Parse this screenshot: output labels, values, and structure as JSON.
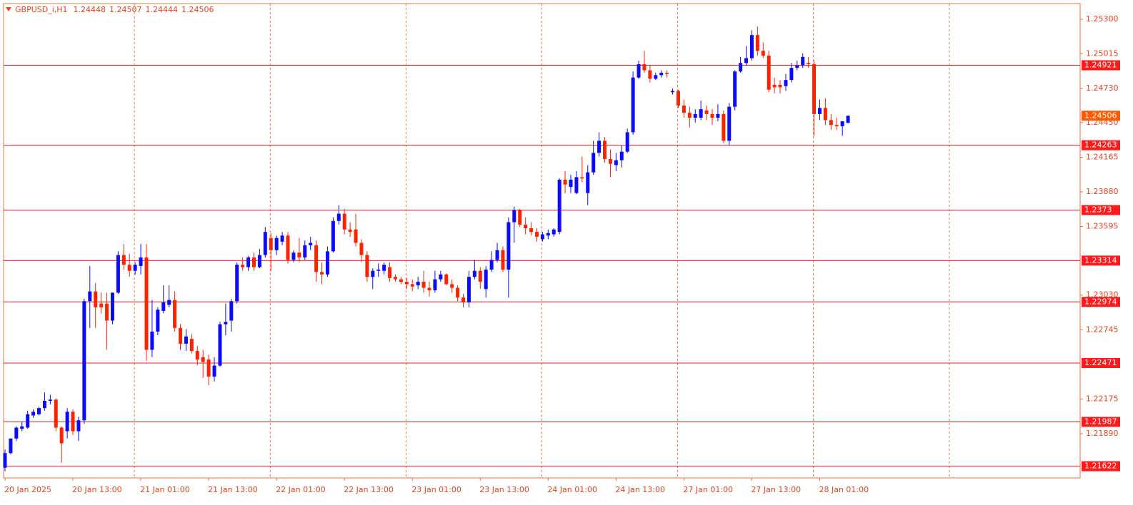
{
  "chart_data": {
    "type": "candlestick",
    "title": "GBPUSD_i,H1",
    "up_color": "#0a0aff",
    "down_color": "#ff2200",
    "level_color": "#ff1a1a",
    "current_color": "#ff5a00",
    "period_separators": true,
    "ylim": [
      1.21526,
      1.25429
    ],
    "yticks": [
      {
        "value": 1.253,
        "label": "1.25300"
      },
      1.25015,
      {
        "value": 1.2473,
        "label": "1.24730"
      },
      {
        "value": 1.2445,
        "label": "1.24450"
      },
      1.24165,
      {
        "value": 1.2388,
        "label": "1.23880"
      },
      1.23595,
      {
        "value": 1.2303,
        "label": "1.23030"
      },
      1.22745,
      1.22175,
      {
        "value": 1.2189,
        "label": "1.21890"
      }
    ],
    "levels": [
      1.24921,
      1.24263,
      1.2373,
      1.23314,
      1.22974,
      1.22471,
      1.21987,
      1.21622
    ],
    "categories": [
      "20 Jan 2025",
      null,
      null,
      null,
      null,
      null,
      null,
      null,
      null,
      null,
      null,
      null,
      "20 Jan 13:00",
      null,
      null,
      null,
      null,
      null,
      null,
      null,
      null,
      null,
      null,
      null,
      "21 Jan 01:00",
      null,
      null,
      null,
      null,
      null,
      null,
      null,
      null,
      null,
      null,
      null,
      "21 Jan 13:00",
      null,
      null,
      null,
      null,
      null,
      null,
      null,
      null,
      null,
      null,
      null,
      "22 Jan 01:00",
      null,
      null,
      null,
      null,
      null,
      null,
      null,
      null,
      null,
      null,
      null,
      "22 Jan 13:00",
      null,
      null,
      null,
      null,
      null,
      null,
      null,
      null,
      null,
      null,
      null,
      "23 Jan 01:00",
      null,
      null,
      null,
      null,
      null,
      null,
      null,
      null,
      null,
      null,
      null,
      "23 Jan 13:00",
      null,
      null,
      null,
      null,
      null,
      null,
      null,
      null,
      null,
      null,
      null,
      "24 Jan 01:00",
      null,
      null,
      null,
      null,
      null,
      null,
      null,
      null,
      null,
      null,
      null,
      "24 Jan 13:00",
      null,
      null,
      null,
      null,
      null,
      null,
      null,
      null,
      null,
      null,
      null,
      "27 Jan 01:00",
      null,
      null,
      null,
      null,
      null,
      null,
      null,
      null,
      null,
      null,
      null,
      "27 Jan 13:00",
      null,
      null,
      null,
      null,
      null,
      null,
      null,
      null,
      null,
      null,
      null,
      "28 Jan 01:00",
      null,
      null,
      null,
      null,
      null
    ],
    "ohlc": [
      [
        1.2161,
        1.2176,
        1.2158,
        1.2173
      ],
      [
        1.2173,
        1.2185,
        1.2172,
        1.2185
      ],
      [
        1.2185,
        1.2195,
        1.2183,
        1.2194
      ],
      [
        1.2193,
        1.2199,
        1.2191,
        1.2195
      ],
      [
        1.2194,
        1.2208,
        1.2193,
        1.2205
      ],
      [
        1.2204,
        1.2209,
        1.2202,
        1.2207
      ],
      [
        1.2205,
        1.2211,
        1.2204,
        1.221
      ],
      [
        1.221,
        1.2223,
        1.2208,
        1.2216
      ],
      [
        1.2216,
        1.2221,
        1.2213,
        1.2217
      ],
      [
        1.2217,
        1.2218,
        1.2191,
        1.2194
      ],
      [
        1.2194,
        1.2195,
        1.2165,
        1.2181
      ],
      [
        1.2191,
        1.221,
        1.2185,
        1.2207
      ],
      [
        1.2207,
        1.2209,
        1.2188,
        1.2191
      ],
      [
        1.2191,
        1.2203,
        1.2183,
        1.22
      ],
      [
        1.22,
        1.23,
        1.2197,
        1.2298
      ],
      [
        1.2298,
        1.2327,
        1.2276,
        1.2306
      ],
      [
        1.2306,
        1.2313,
        1.2276,
        1.2293
      ],
      [
        1.2296,
        1.2305,
        1.2288,
        1.2293
      ],
      [
        1.2296,
        1.2305,
        1.2258,
        1.2282
      ],
      [
        1.2282,
        1.2305,
        1.2279,
        1.2305
      ],
      [
        1.2305,
        1.2339,
        1.2304,
        1.2336
      ],
      [
        1.2336,
        1.2345,
        1.2324,
        1.2328
      ],
      [
        1.2328,
        1.2337,
        1.2318,
        1.2323
      ],
      [
        1.2323,
        1.233,
        1.232,
        1.2328
      ],
      [
        1.2327,
        1.2345,
        1.232,
        1.2334
      ],
      [
        1.2334,
        1.2345,
        1.2249,
        1.2258
      ],
      [
        1.2258,
        1.2299,
        1.2252,
        1.2273
      ],
      [
        1.2273,
        1.2293,
        1.227,
        1.2291
      ],
      [
        1.229,
        1.2311,
        1.2288,
        1.2297
      ],
      [
        1.2295,
        1.2311,
        1.2293,
        1.2299
      ],
      [
        1.2299,
        1.2306,
        1.2273,
        1.2276
      ],
      [
        1.2276,
        1.2279,
        1.2258,
        1.2263
      ],
      [
        1.2263,
        1.2275,
        1.2257,
        1.2269
      ],
      [
        1.2267,
        1.2271,
        1.2255,
        1.2257
      ],
      [
        1.2257,
        1.2261,
        1.2245,
        1.225
      ],
      [
        1.2252,
        1.2258,
        1.2235,
        1.2248
      ],
      [
        1.225,
        1.2254,
        1.2229,
        1.2236
      ],
      [
        1.2236,
        1.2252,
        1.2232,
        1.2245
      ],
      [
        1.2245,
        1.2281,
        1.2244,
        1.2279
      ],
      [
        1.2279,
        1.2296,
        1.227,
        1.2281
      ],
      [
        1.2282,
        1.23,
        1.2273,
        1.2298
      ],
      [
        1.2298,
        1.233,
        1.2296,
        1.2328
      ],
      [
        1.2328,
        1.2334,
        1.2323,
        1.2326
      ],
      [
        1.2326,
        1.2335,
        1.2323,
        1.2334
      ],
      [
        1.2334,
        1.2338,
        1.2323,
        1.2326
      ],
      [
        1.2326,
        1.2341,
        1.2325,
        1.2336
      ],
      [
        1.2336,
        1.2359,
        1.2334,
        1.2355
      ],
      [
        1.235,
        1.2354,
        1.2323,
        1.234
      ],
      [
        1.234,
        1.2352,
        1.2336,
        1.235
      ],
      [
        1.2347,
        1.2355,
        1.2344,
        1.2352
      ],
      [
        1.2352,
        1.2355,
        1.2329,
        1.2332
      ],
      [
        1.2332,
        1.234,
        1.233,
        1.2338
      ],
      [
        1.2338,
        1.235,
        1.233,
        1.2334
      ],
      [
        1.2334,
        1.2348,
        1.2332,
        1.2344
      ],
      [
        1.2344,
        1.2351,
        1.234,
        1.2346
      ],
      [
        1.2344,
        1.2348,
        1.2314,
        1.2322
      ],
      [
        1.2322,
        1.233,
        1.2312,
        1.232
      ],
      [
        1.232,
        1.2343,
        1.2318,
        1.2339
      ],
      [
        1.2339,
        1.2367,
        1.2338,
        1.2364
      ],
      [
        1.2364,
        1.2377,
        1.2361,
        1.237
      ],
      [
        1.237,
        1.2374,
        1.2353,
        1.2357
      ],
      [
        1.2357,
        1.2363,
        1.2351,
        1.2355
      ],
      [
        1.2357,
        1.237,
        1.2343,
        1.2346
      ],
      [
        1.2346,
        1.2349,
        1.233,
        1.2336
      ],
      [
        1.2336,
        1.2339,
        1.2314,
        1.2318
      ],
      [
        1.2318,
        1.2325,
        1.2308,
        1.2323
      ],
      [
        1.2323,
        1.2329,
        1.2318,
        1.2324
      ],
      [
        1.2323,
        1.233,
        1.232,
        1.2328
      ],
      [
        1.2326,
        1.233,
        1.2314,
        1.2317
      ],
      [
        1.2318,
        1.232,
        1.2314,
        1.2316
      ],
      [
        1.2316,
        1.2318,
        1.2312,
        1.2314
      ],
      [
        1.2314,
        1.2317,
        1.2308,
        1.2312
      ],
      [
        1.2312,
        1.2316,
        1.2306,
        1.231
      ],
      [
        1.2311,
        1.2318,
        1.2308,
        1.2314
      ],
      [
        1.2314,
        1.2323,
        1.2305,
        1.2309
      ],
      [
        1.2309,
        1.2314,
        1.2302,
        1.2307
      ],
      [
        1.2307,
        1.2323,
        1.2305,
        1.2316
      ],
      [
        1.2316,
        1.2323,
        1.2314,
        1.232
      ],
      [
        1.232,
        1.2321,
        1.2311,
        1.2312
      ],
      [
        1.2312,
        1.2316,
        1.2305,
        1.2309
      ],
      [
        1.2309,
        1.2311,
        1.2298,
        1.2301
      ],
      [
        1.2301,
        1.2304,
        1.2293,
        1.2297
      ],
      [
        1.2297,
        1.2323,
        1.2293,
        1.2318
      ],
      [
        1.2318,
        1.2332,
        1.2316,
        1.2323
      ],
      [
        1.2323,
        1.2326,
        1.2308,
        1.2314
      ],
      [
        1.2308,
        1.2327,
        1.2301,
        1.2324
      ],
      [
        1.2324,
        1.2339,
        1.2322,
        1.2332
      ],
      [
        1.2332,
        1.2346,
        1.233,
        1.234
      ],
      [
        1.234,
        1.2343,
        1.2322,
        1.2324
      ],
      [
        1.2324,
        1.2367,
        1.2301,
        1.2363
      ],
      [
        1.2363,
        1.2376,
        1.2346,
        1.2373
      ],
      [
        1.2373,
        1.2374,
        1.2359,
        1.2361
      ],
      [
        1.2361,
        1.2367,
        1.2353,
        1.2358
      ],
      [
        1.2358,
        1.2363,
        1.2352,
        1.2355
      ],
      [
        1.2355,
        1.2358,
        1.2347,
        1.2351
      ],
      [
        1.2349,
        1.2355,
        1.2347,
        1.2353
      ],
      [
        1.2352,
        1.2357,
        1.2349,
        1.2354
      ],
      [
        1.2353,
        1.2358,
        1.2351,
        1.2357
      ],
      [
        1.2355,
        1.2399,
        1.2353,
        1.2398
      ],
      [
        1.2398,
        1.2405,
        1.2387,
        1.2394
      ],
      [
        1.2392,
        1.2402,
        1.2387,
        1.2398
      ],
      [
        1.2387,
        1.2405,
        1.2386,
        1.24
      ],
      [
        1.24,
        1.2417,
        1.2396,
        1.2399
      ],
      [
        1.2387,
        1.241,
        1.2377,
        1.2404
      ],
      [
        1.2404,
        1.243,
        1.2402,
        1.242
      ],
      [
        1.242,
        1.2437,
        1.2417,
        1.243
      ],
      [
        1.243,
        1.2433,
        1.2412,
        1.2415
      ],
      [
        1.2415,
        1.2423,
        1.24,
        1.2411
      ],
      [
        1.241,
        1.242,
        1.2405,
        1.2414
      ],
      [
        1.2414,
        1.2426,
        1.2408,
        1.2421
      ],
      [
        1.2421,
        1.244,
        1.242,
        1.2437
      ],
      [
        1.2437,
        1.2487,
        1.2435,
        1.2482
      ],
      [
        1.2482,
        1.2496,
        1.2481,
        1.2493
      ],
      [
        1.2493,
        1.2504,
        1.2486,
        1.2488
      ],
      [
        1.2488,
        1.2492,
        1.2478,
        1.2481
      ],
      [
        1.2481,
        1.2486,
        1.248,
        1.2484
      ],
      [
        1.2484,
        1.2488,
        1.2482,
        1.2486
      ],
      [
        1.2486,
        1.2488,
        1.2482,
        1.2485
      ],
      [
        1.247,
        1.2473,
        1.2468,
        1.2471
      ],
      [
        1.2471,
        1.2472,
        1.2457,
        1.2459
      ],
      [
        1.2459,
        1.2464,
        1.2449,
        1.2453
      ],
      [
        1.2453,
        1.2458,
        1.2441,
        1.2449
      ],
      [
        1.2449,
        1.2456,
        1.2445,
        1.2452
      ],
      [
        1.2449,
        1.2463,
        1.2447,
        1.2456
      ],
      [
        1.2455,
        1.2459,
        1.2447,
        1.2452
      ],
      [
        1.2452,
        1.2456,
        1.2443,
        1.2449
      ],
      [
        1.2449,
        1.246,
        1.2446,
        1.2452
      ],
      [
        1.2452,
        1.2455,
        1.2428,
        1.243
      ],
      [
        1.243,
        1.2461,
        1.2426,
        1.2458
      ],
      [
        1.2458,
        1.2488,
        1.2455,
        1.2487
      ],
      [
        1.2487,
        1.2499,
        1.2486,
        1.2494
      ],
      [
        1.2494,
        1.2508,
        1.2492,
        1.2498
      ],
      [
        1.2498,
        1.2521,
        1.2496,
        1.2517
      ],
      [
        1.2517,
        1.2524,
        1.25,
        1.2504
      ],
      [
        1.2504,
        1.2511,
        1.2498,
        1.25
      ],
      [
        1.25,
        1.2504,
        1.247,
        1.2472
      ],
      [
        1.2476,
        1.2482,
        1.2469,
        1.2474
      ],
      [
        1.2476,
        1.248,
        1.2469,
        1.2474
      ],
      [
        1.2475,
        1.2485,
        1.2471,
        1.248
      ],
      [
        1.248,
        1.2494,
        1.2478,
        1.249
      ],
      [
        1.249,
        1.2496,
        1.2488,
        1.2492
      ],
      [
        1.2492,
        1.2502,
        1.249,
        1.2499
      ],
      [
        1.2494,
        1.2499,
        1.249,
        1.2493
      ],
      [
        1.2493,
        1.2496,
        1.2434,
        1.2452
      ],
      [
        1.2452,
        1.2464,
        1.2447,
        1.2457
      ],
      [
        1.2457,
        1.2465,
        1.2443,
        1.2447
      ],
      [
        1.2447,
        1.2452,
        1.2439,
        1.2443
      ],
      [
        1.2443,
        1.2449,
        1.2439,
        1.2442
      ],
      [
        1.2442,
        1.2446,
        1.2434,
        1.2446
      ],
      [
        1.24448,
        1.24507,
        1.24444,
        1.24506
      ]
    ]
  }
}
